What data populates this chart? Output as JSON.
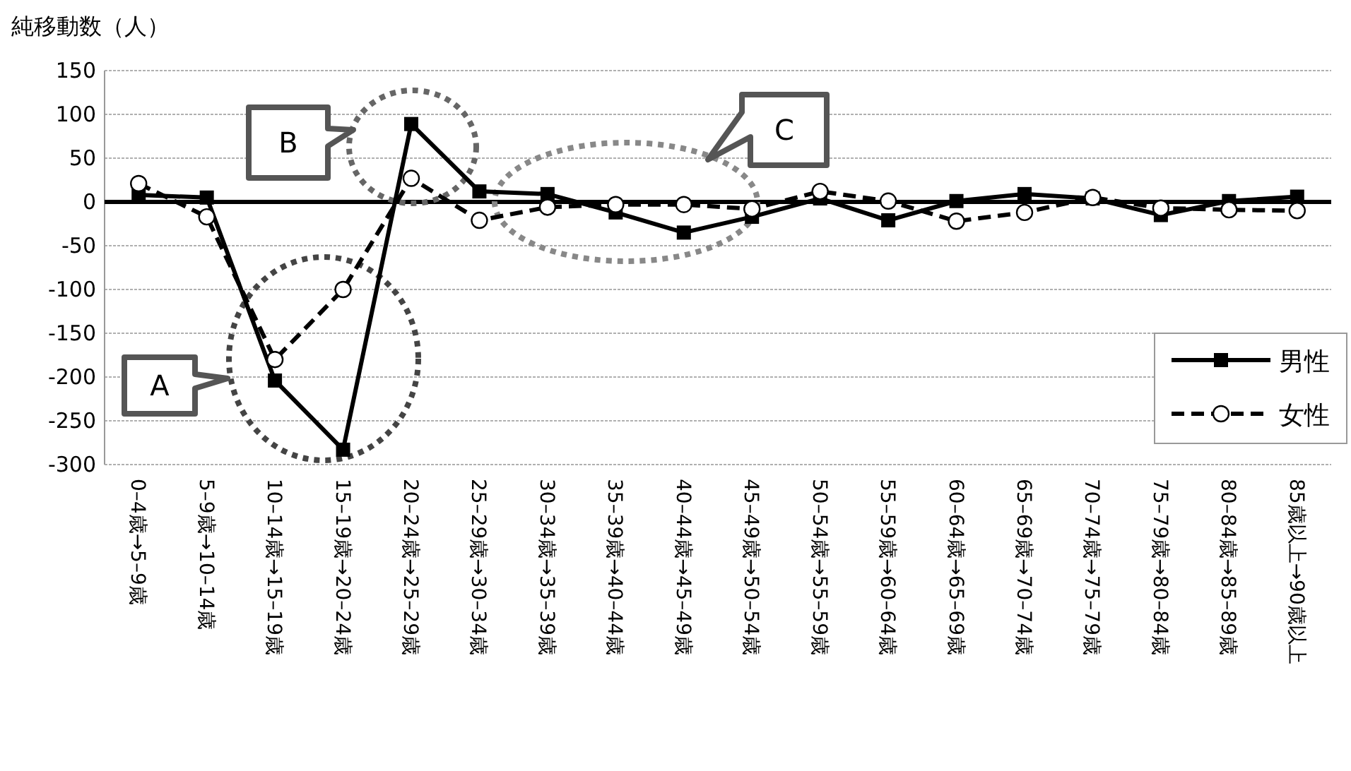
{
  "chart_data": {
    "type": "line",
    "ylabel": "純移動数（人）",
    "categories": [
      "0–4歳→5–9歳",
      "5–9歳→10–14歳",
      "10–14歳→15–19歳",
      "15–19歳→20–24歳",
      "20–24歳→25–29歳",
      "25–29歳→30–34歳",
      "30–34歳→35–39歳",
      "35–39歳→40–44歳",
      "40–44歳→45–49歳",
      "45–49歳→50–54歳",
      "50–54歳→55–59歳",
      "55–59歳→60–64歳",
      "60–64歳→65–69歳",
      "65–69歳→70–74歳",
      "70–74歳→75–79歳",
      "75–79歳→80–84歳",
      "80–84歳→85–89歳",
      "85歳以上→90歳以上"
    ],
    "series": [
      {
        "name": "男性",
        "color": "#000000",
        "marker": "square",
        "line_style": "solid",
        "values": [
          8,
          5,
          -204,
          -283,
          89,
          12,
          9,
          -12,
          -35,
          -17,
          4,
          -21,
          1,
          9,
          4,
          -15,
          1,
          6
        ]
      },
      {
        "name": "女性",
        "color": "#000000",
        "marker": "circle",
        "line_style": "dashed",
        "values": [
          21,
          -17,
          -180,
          -100,
          27,
          -21,
          -6,
          -3,
          -3,
          -8,
          12,
          1,
          -22,
          -12,
          5,
          -7,
          -9,
          -10
        ]
      }
    ],
    "ylim": [
      -300,
      150
    ],
    "yticks": [
      -300,
      -250,
      -200,
      -150,
      -100,
      -50,
      0,
      50,
      100,
      150
    ],
    "grid": "y",
    "legend": "right",
    "annotations": [
      "A",
      "B",
      "C"
    ]
  }
}
